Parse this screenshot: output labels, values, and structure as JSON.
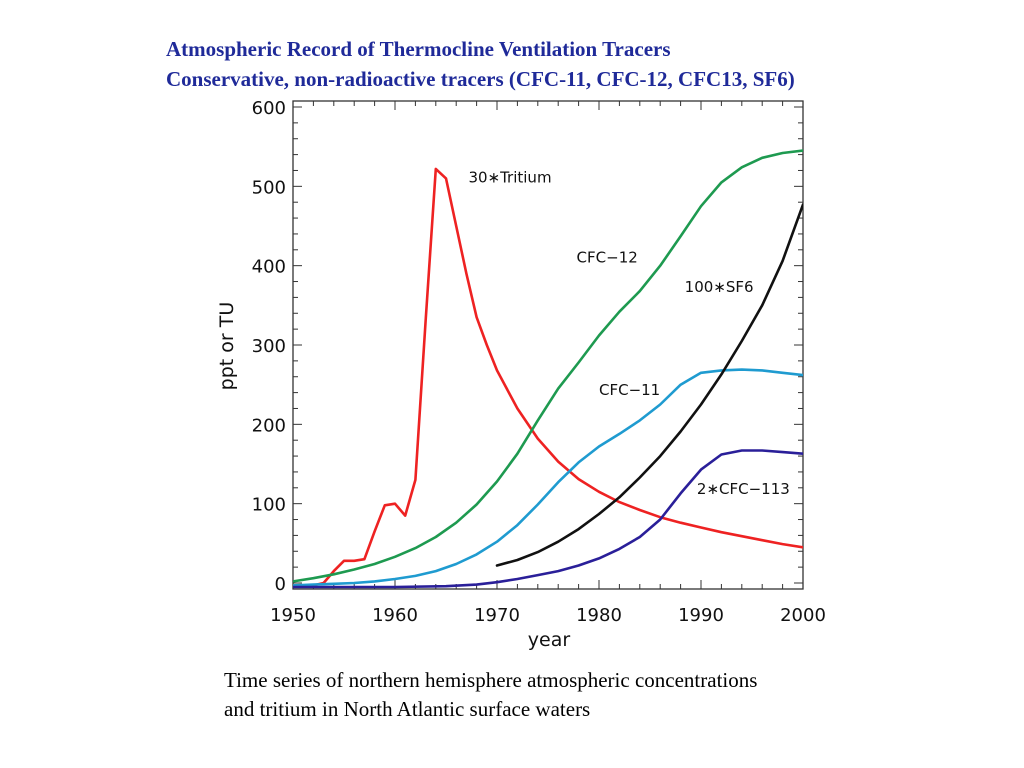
{
  "slide": {
    "title_line1": "Atmospheric Record of Thermocline Ventilation Tracers",
    "title_line2": "Conservative, non-radioactive tracers (CFC-11, CFC-12, CFC13, SF6)",
    "caption_line1": "Time series of northern hemisphere atmospheric concentrations",
    "caption_line2": "and tritium in North Atlantic surface waters"
  },
  "colors": {
    "title": "#1f2a99",
    "tritium": "#ee2222",
    "cfc12": "#1e9a50",
    "sf6": "#111111",
    "cfc11": "#1f9bd0",
    "cfc113": "#2a1f99"
  },
  "chart_data": {
    "type": "line",
    "title": "",
    "xlabel": "year",
    "ylabel": "ppt or TU",
    "xlim": [
      1950,
      2000
    ],
    "ylim": [
      0,
      600
    ],
    "xticks": [
      1950,
      1960,
      1970,
      1980,
      1990,
      2000
    ],
    "yticks": [
      0,
      100,
      200,
      300,
      400,
      500,
      600
    ],
    "grid": false,
    "legend": "inline labels next to curves",
    "series": [
      {
        "name": "30*Tritium",
        "color": "#ee2222",
        "x": [
          1950,
          1951,
          1952,
          1953,
          1954,
          1955,
          1956,
          1957,
          1958,
          1959,
          1960,
          1961,
          1962,
          1963,
          1964,
          1965,
          1966,
          1967,
          1968,
          1969,
          1970,
          1972,
          1974,
          1976,
          1978,
          1980,
          1982,
          1984,
          1986,
          1988,
          1990,
          1992,
          1994,
          1996,
          1998,
          2000
        ],
        "y": [
          -3,
          -3,
          -3,
          0,
          15,
          28,
          28,
          30,
          65,
          98,
          100,
          85,
          130,
          330,
          522,
          510,
          450,
          390,
          335,
          300,
          268,
          220,
          182,
          153,
          131,
          115,
          102,
          92,
          83,
          76,
          70,
          64,
          59,
          54,
          49,
          45
        ]
      },
      {
        "name": "CFC-12",
        "color": "#1e9a50",
        "x": [
          1950,
          1952,
          1954,
          1956,
          1958,
          1960,
          1962,
          1964,
          1966,
          1968,
          1970,
          1972,
          1974,
          1976,
          1978,
          1980,
          1982,
          1984,
          1986,
          1988,
          1990,
          1992,
          1994,
          1996,
          1998,
          2000
        ],
        "y": [
          2,
          6,
          11,
          17,
          24,
          33,
          44,
          58,
          76,
          99,
          128,
          163,
          205,
          245,
          278,
          312,
          342,
          368,
          400,
          437,
          475,
          505,
          524,
          536,
          542,
          545
        ]
      },
      {
        "name": "CFC-11",
        "color": "#1f9bd0",
        "x": [
          1950,
          1952,
          1954,
          1956,
          1958,
          1960,
          1962,
          1964,
          1966,
          1968,
          1970,
          1972,
          1974,
          1976,
          1978,
          1980,
          1982,
          1984,
          1986,
          1988,
          1990,
          1992,
          1994,
          1996,
          1998,
          2000
        ],
        "y": [
          -3,
          -2,
          -1,
          0,
          2,
          5,
          9,
          15,
          24,
          36,
          52,
          73,
          99,
          127,
          152,
          172,
          188,
          205,
          225,
          250,
          265,
          268,
          269,
          268,
          265,
          262
        ]
      },
      {
        "name": "100*SF6",
        "color": "#111111",
        "x": [
          1970,
          1972,
          1974,
          1976,
          1978,
          1980,
          1982,
          1984,
          1986,
          1988,
          1990,
          1992,
          1994,
          1996,
          1998,
          2000
        ],
        "y": [
          22,
          29,
          39,
          52,
          68,
          87,
          108,
          133,
          160,
          191,
          225,
          263,
          305,
          350,
          406,
          477
        ]
      },
      {
        "name": "2*CFC-113",
        "color": "#2a1f99",
        "x": [
          1950,
          1955,
          1960,
          1965,
          1968,
          1970,
          1972,
          1974,
          1976,
          1978,
          1980,
          1982,
          1984,
          1986,
          1988,
          1990,
          1992,
          1994,
          1996,
          1998,
          2000
        ],
        "y": [
          -5,
          -5,
          -5,
          -4,
          -2,
          1,
          5,
          10,
          15,
          22,
          31,
          43,
          58,
          80,
          113,
          143,
          162,
          167,
          167,
          165,
          163
        ]
      }
    ],
    "annotations": [
      {
        "text": "30∗Tritium",
        "x": 1967.2,
        "y": 505,
        "color": "#111111"
      },
      {
        "text": "CFC−12",
        "x": 1977.8,
        "y": 404,
        "color": "#111111"
      },
      {
        "text": "100∗SF6",
        "x": 1988.4,
        "y": 367,
        "color": "#111111"
      },
      {
        "text": "CFC−11",
        "x": 1980.0,
        "y": 237,
        "color": "#111111"
      },
      {
        "text": "2∗CFC−113",
        "x": 1989.6,
        "y": 112,
        "color": "#111111"
      }
    ]
  }
}
